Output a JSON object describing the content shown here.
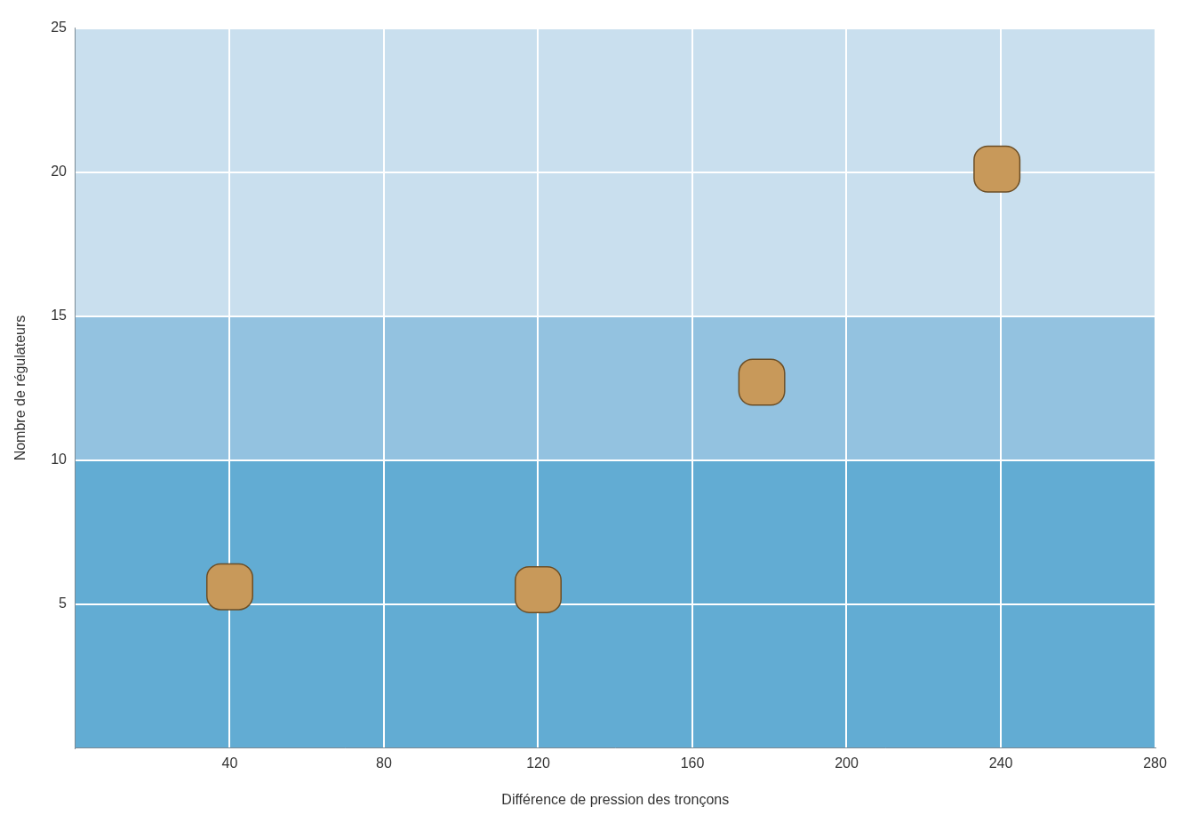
{
  "chart_data": {
    "type": "scatter",
    "x_label": "Différence de pression des tronçons",
    "y_label": "Nombre de régulateurs",
    "x": [
      40,
      120,
      178,
      239
    ],
    "values": [
      5.6,
      5.5,
      12.7,
      20.1
    ],
    "color": "#c8995a",
    "marker": "square",
    "xlim": [
      0,
      280
    ],
    "xticks": [
      40,
      80,
      120,
      160,
      200,
      240,
      280
    ],
    "ylim": [
      0,
      25
    ],
    "yticks": [
      5,
      10,
      15,
      20,
      25
    ],
    "grid": true,
    "bands": [
      {
        "from": 0,
        "to": 10,
        "color": "#62acd3"
      },
      {
        "from": 10,
        "to": 15,
        "color": "#93c2e0"
      },
      {
        "from": 15,
        "to": 25,
        "color": "#c9dfee"
      }
    ]
  }
}
